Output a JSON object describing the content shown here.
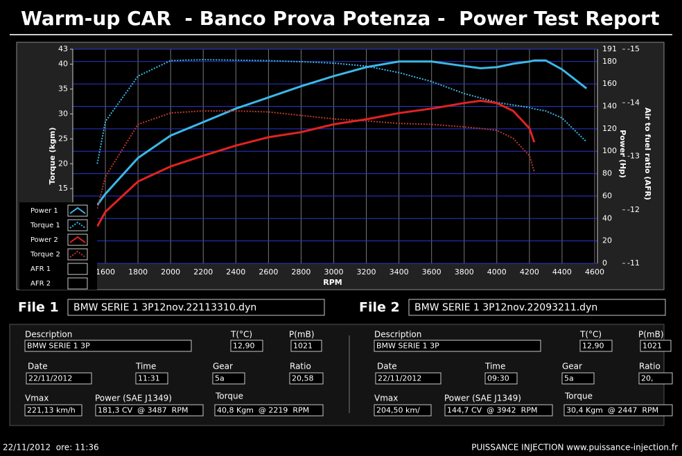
{
  "header": {
    "title": "Warm-up CAR  - Banco Prova Potenza -  Power Test Report"
  },
  "chart_data": {
    "type": "line",
    "x_label": "RPM",
    "y_label": "Torque (kgm)",
    "y2_label": "Power (Hp)",
    "y3_label": "Air to fuel ratio (AFR)",
    "x": [
      1550,
      1600,
      1800,
      2000,
      2200,
      2400,
      2600,
      2800,
      3000,
      3200,
      3400,
      3600,
      3800,
      3900,
      4000,
      4100,
      4200,
      4230,
      4300,
      4400,
      4550
    ],
    "series": [
      {
        "name": "Power 1",
        "color": "#3cb8ea",
        "style": "solid",
        "axis": "y2",
        "values": [
          52,
          62,
          94,
          114,
          126,
          138,
          148,
          158,
          167,
          175,
          180,
          180,
          176,
          174,
          175,
          178,
          180,
          181,
          181,
          173,
          156
        ]
      },
      {
        "name": "Torque 1",
        "color": "#3cb8ea",
        "style": "dotted",
        "values": [
          20,
          28.5,
          37.6,
          40.7,
          40.9,
          40.8,
          40.7,
          40.5,
          40.2,
          39.6,
          38.3,
          36.5,
          34.1,
          33.2,
          32.3,
          31.8,
          31.3,
          31,
          30.6,
          29.2,
          24.4
        ]
      },
      {
        "name": "Power 2",
        "color": "#e42222",
        "style": "solid",
        "axis": "y2",
        "values": [
          33,
          46,
          73,
          86.5,
          96,
          105,
          112.5,
          117,
          124,
          128.5,
          134,
          138,
          143,
          145,
          143,
          136,
          120.5,
          108,
          null,
          null,
          null
        ]
      },
      {
        "name": "Torque 2",
        "color": "#c0392b",
        "style": "dotted",
        "values": [
          11,
          17.4,
          27.9,
          30.2,
          30.6,
          30.6,
          30.4,
          29.7,
          29,
          28.6,
          28.1,
          27.9,
          27.4,
          27.1,
          26.7,
          25.1,
          21.6,
          18.4,
          null,
          null,
          null
        ]
      },
      {
        "name": "AFR 1",
        "style": "none",
        "axis": "y3",
        "values": [
          null,
          null,
          null,
          null,
          null,
          null,
          null,
          null,
          null,
          null,
          null,
          null,
          null,
          null,
          null,
          null,
          null,
          null,
          null,
          null,
          null
        ]
      },
      {
        "name": "AFR 2",
        "style": "none",
        "axis": "y3",
        "values": [
          null,
          null,
          null,
          null,
          null,
          null,
          null,
          null,
          null,
          null,
          null,
          null,
          null,
          null,
          null,
          null,
          null,
          null,
          null,
          null,
          null
        ]
      }
    ],
    "xlim": [
      1400,
      4617
    ],
    "xticks": [
      1600,
      1800,
      2000,
      2200,
      2400,
      2600,
      2800,
      3000,
      3200,
      3400,
      3600,
      3800,
      4000,
      4200,
      4400,
      4600
    ],
    "ylim": [
      0,
      43
    ],
    "yticks": [
      15,
      20,
      25,
      30,
      35,
      40,
      43
    ],
    "y2lim": [
      0,
      191
    ],
    "y2ticks": [
      0,
      20,
      40,
      60,
      80,
      100,
      120,
      140,
      160,
      180,
      191
    ],
    "y3lim": [
      -11,
      -15
    ],
    "y3ticks": [
      -11,
      -12,
      -13,
      -14,
      -15
    ],
    "grid": true
  },
  "field_labels": [
    "Description",
    "T(°C)",
    "P(mB)",
    "Date",
    "Time",
    "Gear",
    "Ratio",
    "Vmax",
    "Power (SAE J1349)",
    "Torque"
  ],
  "files": [
    {
      "label": "File 1",
      "filename": "BMW SERIE 1 3P12nov.22113310.dyn",
      "values": [
        "BMW SERIE 1 3P",
        "12,90",
        "1021",
        "22/11/2012",
        "11:31",
        "5a",
        "20,58",
        "221,13 km/h",
        "181,3 CV  @ 3487  RPM",
        "40,8 Kgm  @ 2219  RPM"
      ]
    },
    {
      "label": "File 2",
      "filename": "BMW SERIE 1 3P12nov.22093211.dyn",
      "values": [
        "BMW SERIE 1 3P",
        "12,90",
        "1021",
        "22/11/2012",
        "09:30",
        "5a",
        "20,",
        "204,50 km/",
        "144,7 CV  @ 3942  RPM",
        "30,4 Kgm  @ 2447  RPM"
      ]
    }
  ],
  "footer": {
    "left": "22/11/2012  ore: 11:36",
    "right": "PUISSANCE INJECTION www.puissance-injection.fr"
  }
}
